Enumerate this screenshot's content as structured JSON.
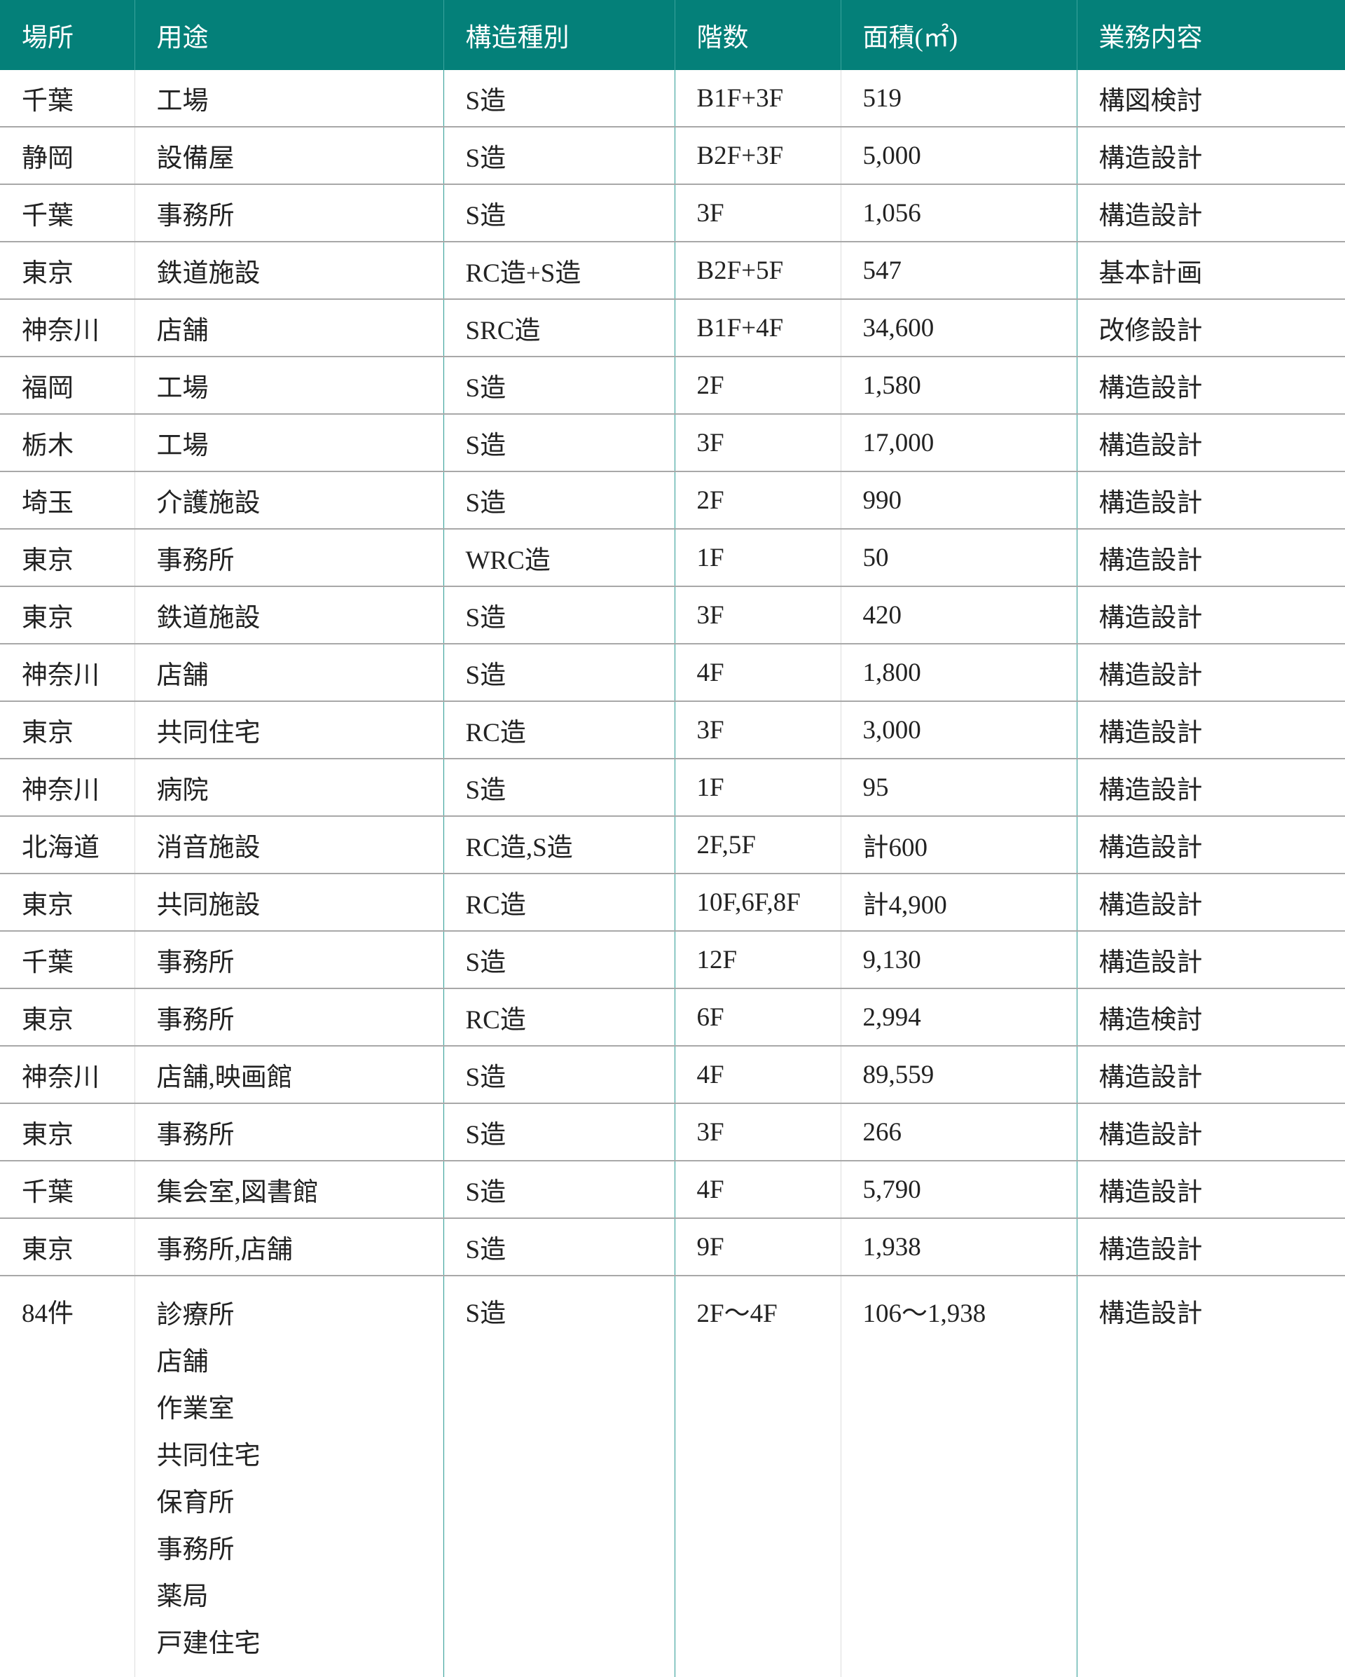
{
  "header": [
    "場所",
    "用途",
    "構造種別",
    "階数",
    "面積(㎡)",
    "業務内容"
  ],
  "rows": [
    [
      "千葉",
      "工場",
      "S造",
      "B1F+3F",
      "519",
      "構図検討"
    ],
    [
      "静岡",
      "設備屋",
      "S造",
      "B2F+3F",
      "5,000",
      "構造設計"
    ],
    [
      "千葉",
      "事務所",
      "S造",
      "3F",
      "1,056",
      "構造設計"
    ],
    [
      "東京",
      "鉄道施設",
      "RC造+S造",
      "B2F+5F",
      "547",
      "基本計画"
    ],
    [
      "神奈川",
      "店舗",
      "SRC造",
      "B1F+4F",
      "34,600",
      "改修設計"
    ],
    [
      "福岡",
      "工場",
      "S造",
      "2F",
      "1,580",
      "構造設計"
    ],
    [
      "栃木",
      "工場",
      "S造",
      "3F",
      "17,000",
      "構造設計"
    ],
    [
      "埼玉",
      "介護施設",
      "S造",
      "2F",
      "990",
      "構造設計"
    ],
    [
      "東京",
      "事務所",
      "WRC造",
      "1F",
      "50",
      "構造設計"
    ],
    [
      "東京",
      "鉄道施設",
      "S造",
      "3F",
      "420",
      "構造設計"
    ],
    [
      "神奈川",
      "店舗",
      "S造",
      "4F",
      "1,800",
      "構造設計"
    ],
    [
      "東京",
      "共同住宅",
      "RC造",
      "3F",
      "3,000",
      "構造設計"
    ],
    [
      "神奈川",
      "病院",
      "S造",
      "1F",
      "95",
      "構造設計"
    ],
    [
      "北海道",
      "消音施設",
      "RC造,S造",
      "2F,5F",
      "計600",
      "構造設計"
    ],
    [
      "東京",
      "共同施設",
      "RC造",
      "10F,6F,8F",
      "計4,900",
      "構造設計"
    ],
    [
      "千葉",
      "事務所",
      "S造",
      "12F",
      "9,130",
      "構造設計"
    ],
    [
      "東京",
      "事務所",
      "RC造",
      "6F",
      "2,994",
      "構造検討"
    ],
    [
      "神奈川",
      "店舗,映画館",
      "S造",
      "4F",
      "89,559",
      "構造設計"
    ],
    [
      "東京",
      "事務所",
      "S造",
      "3F",
      "266",
      "構造設計"
    ],
    [
      "千葉",
      "集会室,図書館",
      "S造",
      "4F",
      "5,790",
      "構造設計"
    ],
    [
      "東京",
      "事務所,店舗",
      "S造",
      "9F",
      "1,938",
      "構造設計"
    ]
  ],
  "last_row": {
    "place": "84件",
    "uses": [
      "診療所",
      "店舗",
      "作業室",
      "共同住宅",
      "保育所",
      "事務所",
      "薬局",
      "戸建住宅"
    ],
    "structure": "S造",
    "floors": "2F〜4F",
    "area": "106〜1,938",
    "work": "構造設計"
  },
  "colors": {
    "header_bg": "#048079",
    "header_text": "#ffffff",
    "row_divider": "#a8a8a8",
    "column_divider": "#2d9b94"
  }
}
